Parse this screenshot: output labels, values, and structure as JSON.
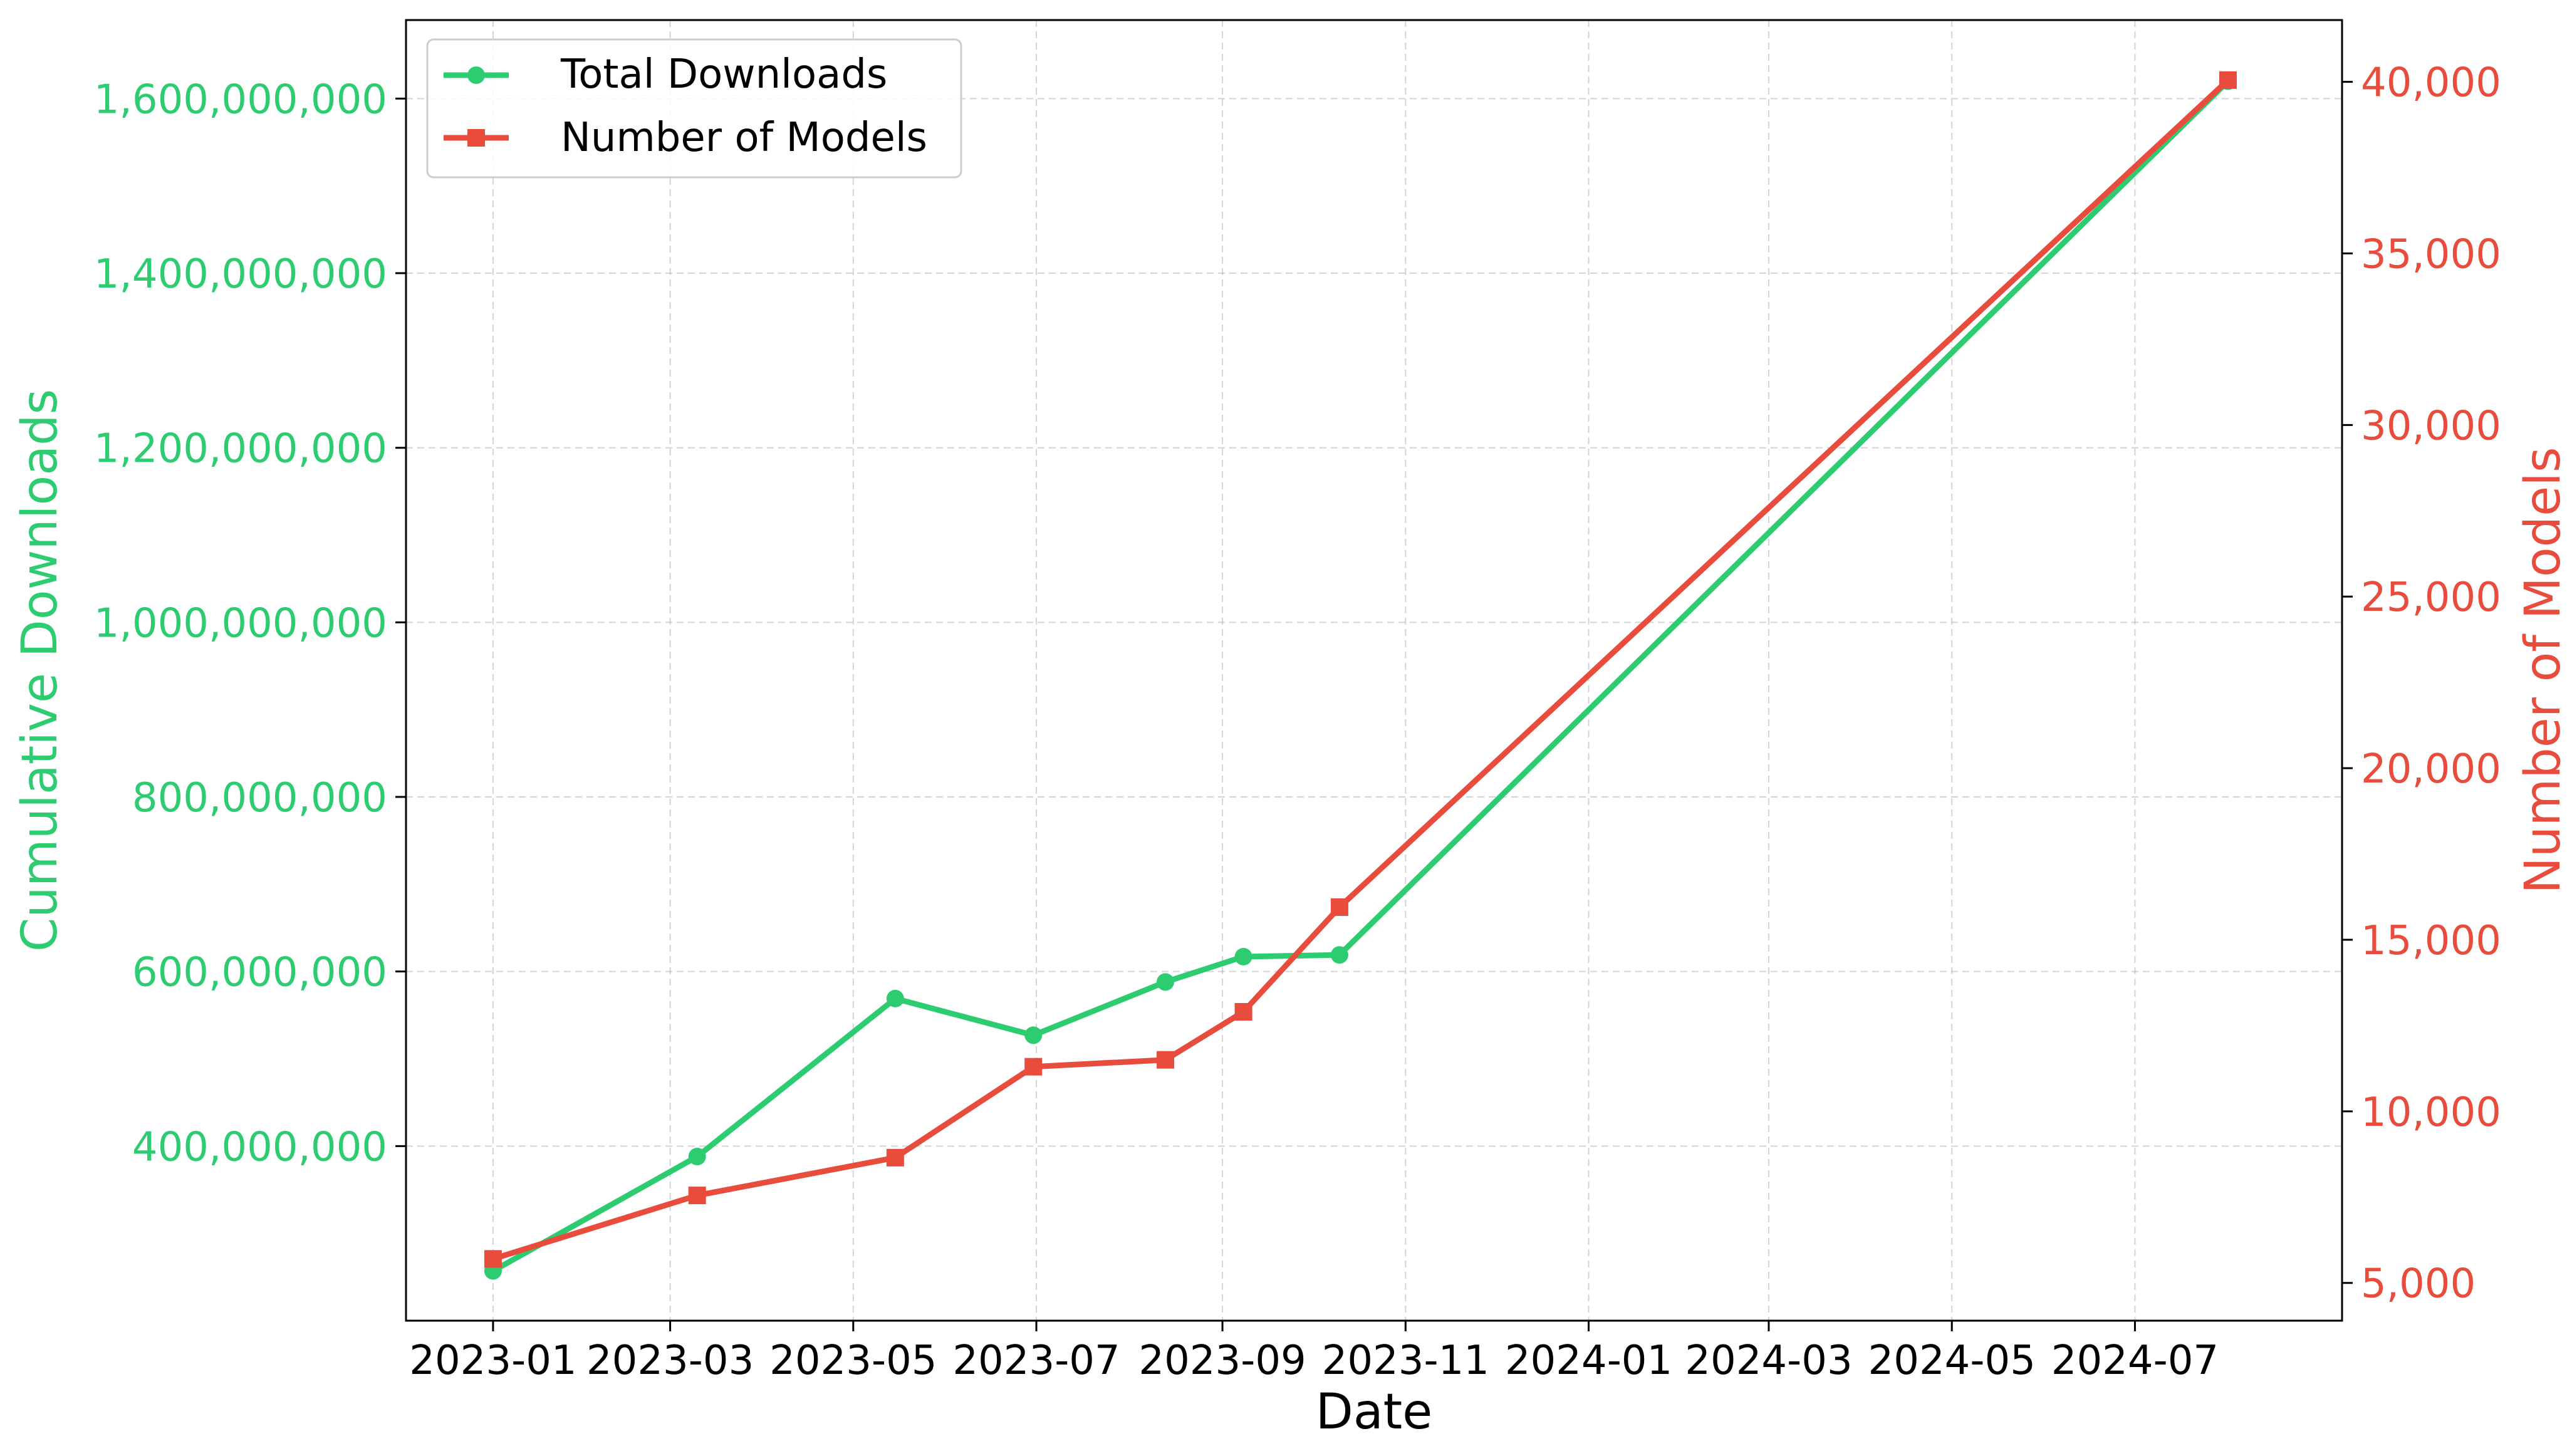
{
  "chart_data": {
    "type": "line",
    "title": "",
    "xlabel": "Date",
    "ylabel_left": "Cumulative Downloads",
    "ylabel_right": "Number of Models",
    "x_ticks": [
      "2023-01",
      "2023-03",
      "2023-05",
      "2023-07",
      "2023-09",
      "2023-11",
      "2024-01",
      "2024-03",
      "2024-05",
      "2024-07"
    ],
    "xlim": [
      "2022-12-03",
      "2024-09-08"
    ],
    "y_left_ticks": [
      400000000,
      600000000,
      800000000,
      1000000000,
      1200000000,
      1400000000,
      1600000000
    ],
    "y_left_tick_labels": [
      "400,000,000",
      "600,000,000",
      "800,000,000",
      "1,000,000,000",
      "1,200,000,000",
      "1,400,000,000",
      "1,600,000,000"
    ],
    "ylim_left": [
      200000000,
      1690000000
    ],
    "y_right_ticks": [
      5000,
      10000,
      15000,
      20000,
      25000,
      30000,
      35000,
      40000
    ],
    "y_right_tick_labels": [
      "5,000",
      "10,000",
      "15,000",
      "20,000",
      "25,000",
      "30,000",
      "35,000",
      "40,000"
    ],
    "ylim_right": [
      3900000,
      41800000
    ],
    "ylim_right_units": [
      3900,
      41800
    ],
    "grid": true,
    "legend_position": "top-left",
    "series": [
      {
        "name": "Total Downloads",
        "axis": "left",
        "color": "#2ecc71",
        "marker": "circle",
        "x": [
          "2023-01-01",
          "2023-03-10",
          "2023-05-15",
          "2023-06-30",
          "2023-08-13",
          "2023-09-08",
          "2023-10-10",
          "2024-08-01"
        ],
        "y": [
          257000000,
          388000000,
          569000000,
          527000000,
          588000000,
          617000000,
          619000000,
          1620000000
        ]
      },
      {
        "name": "Number of Models",
        "axis": "right",
        "color": "#e74c3c",
        "marker": "square",
        "x": [
          "2023-01-01",
          "2023-03-10",
          "2023-05-15",
          "2023-06-30",
          "2023-08-13",
          "2023-09-08",
          "2023-10-10",
          "2024-08-01"
        ],
        "y": [
          5700,
          7550,
          8650,
          11300,
          11500,
          12900,
          15950,
          40050
        ]
      }
    ]
  }
}
